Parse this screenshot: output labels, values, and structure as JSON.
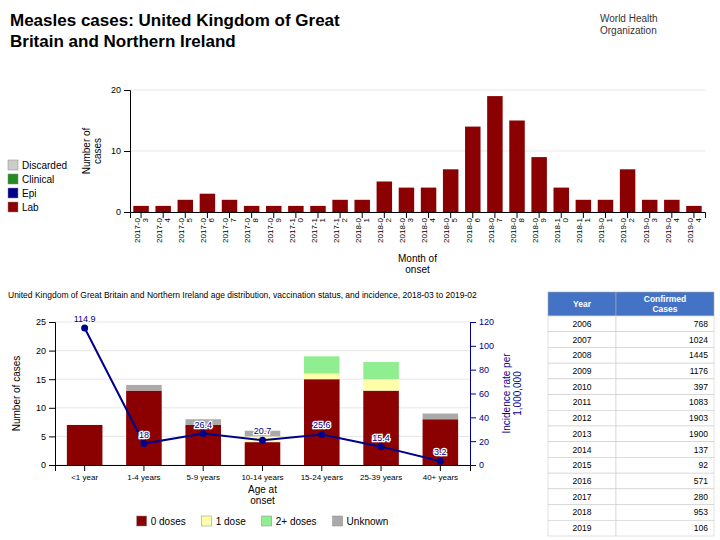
{
  "chart_data": [
    {
      "type": "bar",
      "stacked": true,
      "title": "Measles cases: United Kingdom of Great\nBritain and Northern Ireland",
      "annotations": [
        "World Health\nOrganization"
      ],
      "x_label": "Month of\nonset",
      "y_label": "Number of\ncases",
      "categories": [
        "2017-0\n3",
        "2017-0\n4",
        "2017-0\n5",
        "2017-0\n6",
        "2017-0\n7",
        "2017-0\n8",
        "2017-0\n9",
        "2017-1\n0",
        "2017-1\n1",
        "2017-1\n2",
        "2018-0\n1",
        "2018-0\n2",
        "2018-0\n3",
        "2018-0\n4",
        "2018-0\n5",
        "2018-0\n6",
        "2018-0\n7",
        "2018-0\n8",
        "2018-0\n9",
        "2018-1\n0",
        "2018-1\n1",
        "2019-0\n1",
        "2019-0\n2",
        "2019-0\n3",
        "2019-0\n4",
        "2019-0\n4"
      ],
      "series": [
        {
          "name": "Discarded",
          "color": "#CCCCCC",
          "values": [
            0,
            0,
            0,
            0,
            0,
            0,
            0,
            0,
            0,
            0,
            0,
            0,
            0,
            0,
            0,
            0,
            0,
            0,
            0,
            0,
            0,
            0,
            0,
            0,
            0,
            0
          ]
        },
        {
          "name": "Clinical",
          "color": "#228B22",
          "values": [
            0,
            0,
            0,
            0,
            0,
            0,
            0,
            0,
            0,
            0,
            0,
            0,
            0,
            0,
            0,
            0,
            0,
            0,
            0,
            0,
            0,
            0,
            0,
            0,
            0,
            0
          ]
        },
        {
          "name": "Epi",
          "color": "#00008B",
          "values": [
            0,
            0,
            0,
            0,
            0,
            0,
            0,
            0,
            0,
            0,
            0,
            0,
            0,
            0,
            0,
            0,
            0,
            0,
            0,
            0,
            0,
            0,
            0,
            0,
            0,
            0
          ]
        },
        {
          "name": "Lab",
          "color": "#8B0000",
          "values": [
            1,
            1,
            2,
            3,
            2,
            1,
            1,
            1,
            1,
            2,
            2,
            5,
            4,
            4,
            7,
            14,
            19,
            15,
            9,
            4,
            2,
            2,
            7,
            2,
            2,
            1
          ]
        }
      ],
      "ylim": [
        0,
        20
      ],
      "yticks": [
        0,
        10,
        20
      ],
      "grid": true,
      "legend": "lower left"
    },
    {
      "type": "bar",
      "stacked": true,
      "subtitle": "United Kingdom of Great Britain and Northern Ireland age distribution, vaccination status, and incidence, 2018-03 to 2019-02",
      "x_label": "Age at\nonset",
      "y_label": "Number of cases",
      "y2_label": "Incidence rate per\n1,000,000",
      "categories": [
        "<1 year",
        "1-4 years",
        "5-9 years",
        "10-14 years",
        "15-24 years",
        "25-39 years",
        "40+ years"
      ],
      "series": [
        {
          "name": "0 doses",
          "color": "#8B0000",
          "values": [
            7,
            13,
            7,
            4,
            15,
            13,
            8
          ]
        },
        {
          "name": "1 dose",
          "color": "#FFFFAA",
          "values": [
            0,
            0,
            0,
            1,
            1,
            2,
            0
          ]
        },
        {
          "name": "2+ doses",
          "color": "#90EE90",
          "values": [
            0,
            0,
            0,
            0,
            3,
            3,
            0
          ]
        },
        {
          "name": "Unknown",
          "color": "#AAAAAA",
          "values": [
            0,
            1,
            1,
            1,
            0,
            0,
            1
          ]
        },
        {
          "type": "line",
          "axis": "y2",
          "color": "#00008B",
          "marker": "circle",
          "data_labels": true,
          "values": [
            114.9,
            18,
            26.4,
            20.7,
            25.6,
            15.4,
            3.2
          ]
        }
      ],
      "ylim": [
        0,
        25
      ],
      "yticks": [
        0,
        5,
        10,
        15,
        20,
        25
      ],
      "y2lim": [
        0,
        120
      ],
      "y2ticks": [
        0,
        20,
        40,
        60,
        80,
        100,
        120
      ],
      "grid": true,
      "legend": "bottom"
    },
    {
      "type": "table",
      "columns": [
        "Year",
        "Confirmed\nCases"
      ],
      "categories": [
        2006,
        2007,
        2008,
        2009,
        2010,
        2011,
        2012,
        2013,
        2014,
        2015,
        2016,
        2017,
        2018,
        2019
      ],
      "values": [
        768,
        1024,
        1445,
        1176,
        397,
        1083,
        1903,
        1900,
        137,
        92,
        571,
        280,
        953,
        106
      ],
      "color": "#4472C4"
    }
  ]
}
